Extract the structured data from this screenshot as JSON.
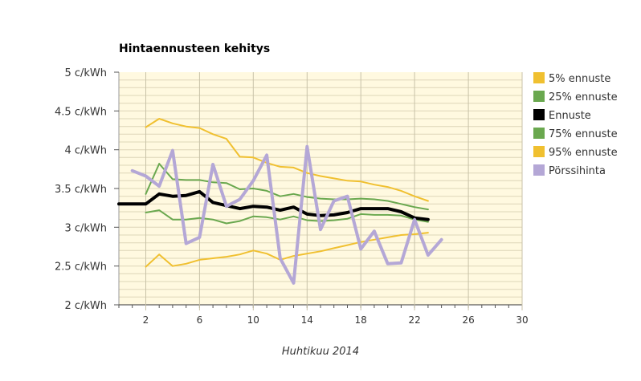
{
  "chart_data": {
    "type": "line",
    "title": "Hintaennusteen kehitys",
    "xlabel": "Huhtikuu 2014",
    "ylabel": "",
    "xlim": [
      0,
      30
    ],
    "ylim": [
      2,
      5
    ],
    "x_ticks": [
      "2",
      "6",
      "10",
      "14",
      "18",
      "22",
      "26",
      "30"
    ],
    "y_ticks": [
      "2 c/kWh",
      "2.5 c/kWh",
      "3 c/kWh",
      "3.5 c/kWh",
      "4 c/kWh",
      "4.5 c/kWh",
      "5 c/kWh"
    ],
    "grid": true,
    "legend_position": "right",
    "series": [
      {
        "name": "5% ennuste",
        "color": "#f0c030",
        "width": 2,
        "x": [
          2,
          3,
          4,
          5,
          6,
          7,
          8,
          9,
          10,
          11,
          12,
          13,
          14,
          15,
          16,
          17,
          18,
          19,
          20,
          21,
          22,
          23
        ],
        "values": [
          2.49,
          2.65,
          2.5,
          2.53,
          2.58,
          2.6,
          2.62,
          2.65,
          2.7,
          2.66,
          2.58,
          2.63,
          2.66,
          2.69,
          2.73,
          2.77,
          2.81,
          2.84,
          2.87,
          2.9,
          2.91,
          2.93
        ]
      },
      {
        "name": "25% ennuste",
        "color": "#6aa84f",
        "width": 2,
        "x": [
          2,
          3,
          4,
          5,
          6,
          7,
          8,
          9,
          10,
          11,
          12,
          13,
          14,
          15,
          16,
          17,
          18,
          19,
          20,
          21,
          22,
          23
        ],
        "values": [
          3.19,
          3.22,
          3.1,
          3.1,
          3.12,
          3.1,
          3.05,
          3.08,
          3.14,
          3.13,
          3.1,
          3.14,
          3.09,
          3.08,
          3.09,
          3.11,
          3.17,
          3.16,
          3.16,
          3.15,
          3.1,
          3.07
        ]
      },
      {
        "name": "Ennuste",
        "color": "#000000",
        "width": 4,
        "x": [
          0,
          1,
          2,
          3,
          4,
          5,
          6,
          7,
          8,
          9,
          10,
          11,
          12,
          13,
          14,
          15,
          16,
          17,
          18,
          19,
          20,
          21,
          22,
          23
        ],
        "values": [
          3.3,
          3.3,
          3.3,
          3.43,
          3.4,
          3.41,
          3.46,
          3.32,
          3.28,
          3.24,
          3.27,
          3.26,
          3.22,
          3.26,
          3.17,
          3.15,
          3.16,
          3.19,
          3.24,
          3.24,
          3.24,
          3.2,
          3.12,
          3.1
        ]
      },
      {
        "name": "75% ennuste",
        "color": "#6aa84f",
        "width": 2,
        "x": [
          2,
          3,
          4,
          5,
          6,
          7,
          8,
          9,
          10,
          11,
          12,
          13,
          14,
          15,
          16,
          17,
          18,
          19,
          20,
          21,
          22,
          23
        ],
        "values": [
          3.43,
          3.82,
          3.62,
          3.61,
          3.61,
          3.58,
          3.57,
          3.49,
          3.5,
          3.47,
          3.4,
          3.43,
          3.39,
          3.37,
          3.36,
          3.36,
          3.37,
          3.36,
          3.34,
          3.3,
          3.26,
          3.23
        ]
      },
      {
        "name": "95% ennuste",
        "color": "#f0c030",
        "width": 2,
        "x": [
          2,
          3,
          4,
          5,
          6,
          7,
          8,
          9,
          10,
          11,
          12,
          13,
          14,
          15,
          16,
          17,
          18,
          19,
          20,
          21,
          22,
          23
        ],
        "values": [
          4.29,
          4.4,
          4.34,
          4.3,
          4.28,
          4.2,
          4.14,
          3.91,
          3.9,
          3.83,
          3.78,
          3.77,
          3.7,
          3.66,
          3.63,
          3.6,
          3.59,
          3.55,
          3.52,
          3.47,
          3.4,
          3.34
        ]
      },
      {
        "name": "Pörssihinta",
        "color": "#b4a7d6",
        "width": 4,
        "x": [
          1,
          2,
          3,
          4,
          5,
          6,
          7,
          8,
          9,
          10,
          11,
          12,
          13,
          14,
          15,
          16,
          17,
          18,
          19,
          20,
          21,
          22,
          23,
          24
        ],
        "values": [
          3.73,
          3.66,
          3.53,
          3.99,
          2.79,
          2.87,
          3.81,
          3.27,
          3.36,
          3.6,
          3.93,
          2.6,
          2.28,
          4.04,
          2.97,
          3.34,
          3.4,
          2.72,
          2.95,
          2.53,
          2.54,
          3.1,
          2.64,
          2.84
        ]
      }
    ]
  }
}
